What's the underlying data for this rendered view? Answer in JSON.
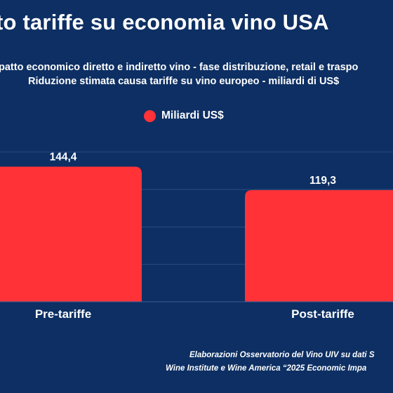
{
  "chart_data": {
    "type": "bar",
    "title": "to tariffe su economia vino USA",
    "subtitle_1": "patto economico diretto e indiretto vino - fase distribuzione, retail e traspo",
    "subtitle_2": "Riduzione stimata causa tariffe su vino europeo - miliardi di US$",
    "categories": [
      "Pre-tariffe",
      "Post-tariffe"
    ],
    "series": [
      {
        "name": "Miliardi US$",
        "values": [
          144.4,
          119.3
        ],
        "value_labels": [
          "144,4",
          "119,3"
        ],
        "color": "#ff3337"
      }
    ],
    "ylim": [
      0,
      180
    ],
    "grid": true,
    "legend_position": "top-center"
  },
  "source": {
    "line1": "Elaborazioni Osservatorio del Vino UIV su dati S",
    "line2": "Wine Institute e Wine America “2025 Economic Impa"
  },
  "colors": {
    "background": "#0d2f63",
    "bar": "#ff3337",
    "text": "#ffffff"
  }
}
